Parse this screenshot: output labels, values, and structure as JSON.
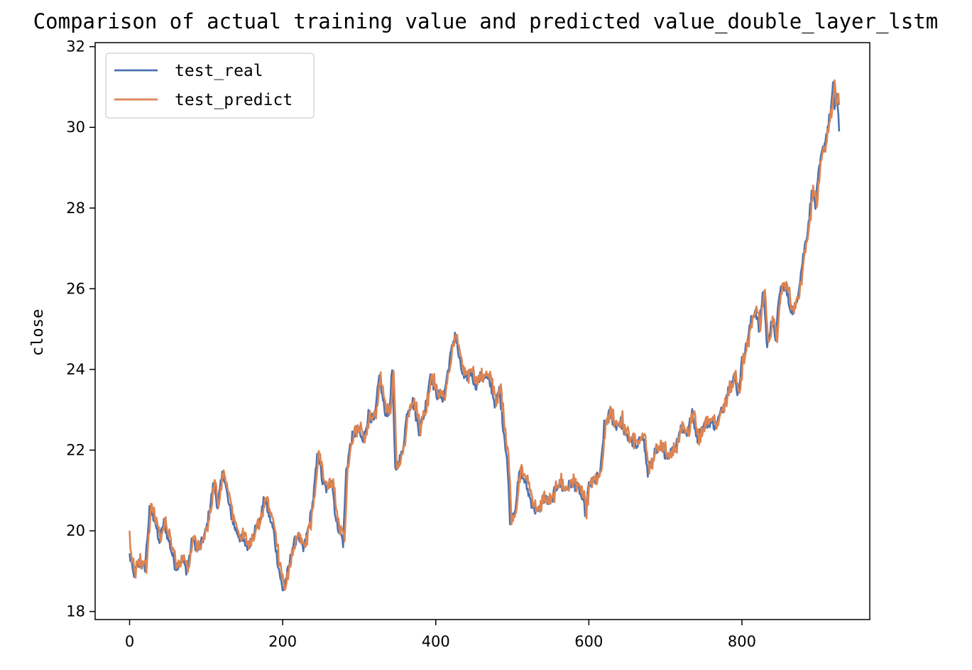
{
  "chart_data": {
    "type": "line",
    "title": "Comparison of actual training value and predicted value_double_layer_lstm",
    "xlabel": "",
    "ylabel": "close",
    "xlim": [
      -45,
      967
    ],
    "ylim": [
      17.8,
      32.1
    ],
    "xticks": [
      0,
      200,
      400,
      600,
      800
    ],
    "yticks": [
      18,
      20,
      22,
      24,
      26,
      28,
      30,
      32
    ],
    "grid": false,
    "legend_position": "top-left",
    "colors": {
      "test_real": "#4c72b0",
      "test_predict": "#dd8452"
    },
    "anchors": [
      [
        0,
        19.4
      ],
      [
        5,
        18.9
      ],
      [
        12,
        19.2
      ],
      [
        20,
        19.1
      ],
      [
        26,
        20.5
      ],
      [
        33,
        20.3
      ],
      [
        38,
        19.7
      ],
      [
        45,
        20.2
      ],
      [
        52,
        19.7
      ],
      [
        60,
        19.1
      ],
      [
        68,
        19.3
      ],
      [
        75,
        19.0
      ],
      [
        82,
        19.8
      ],
      [
        90,
        19.5
      ],
      [
        100,
        20.0
      ],
      [
        110,
        21.2
      ],
      [
        115,
        20.6
      ],
      [
        122,
        21.5
      ],
      [
        130,
        20.6
      ],
      [
        137,
        20.1
      ],
      [
        145,
        19.8
      ],
      [
        155,
        19.6
      ],
      [
        162,
        20.0
      ],
      [
        170,
        20.2
      ],
      [
        176,
        20.8
      ],
      [
        182,
        20.4
      ],
      [
        188,
        20.0
      ],
      [
        193,
        19.3
      ],
      [
        200,
        18.5
      ],
      [
        207,
        19.0
      ],
      [
        213,
        19.6
      ],
      [
        220,
        19.9
      ],
      [
        227,
        19.5
      ],
      [
        235,
        20.2
      ],
      [
        240,
        20.8
      ],
      [
        246,
        22.0
      ],
      [
        252,
        21.2
      ],
      [
        258,
        21.0
      ],
      [
        264,
        21.3
      ],
      [
        270,
        20.2
      ],
      [
        275,
        20.0
      ],
      [
        279,
        19.7
      ],
      [
        283,
        21.5
      ],
      [
        290,
        22.3
      ],
      [
        298,
        22.5
      ],
      [
        305,
        22.2
      ],
      [
        312,
        22.9
      ],
      [
        320,
        22.7
      ],
      [
        326,
        23.8
      ],
      [
        333,
        23.0
      ],
      [
        339,
        22.9
      ],
      [
        343,
        24.0
      ],
      [
        347,
        21.5
      ],
      [
        351,
        21.7
      ],
      [
        356,
        21.9
      ],
      [
        363,
        23.0
      ],
      [
        370,
        23.2
      ],
      [
        378,
        22.5
      ],
      [
        385,
        22.9
      ],
      [
        393,
        23.9
      ],
      [
        400,
        23.4
      ],
      [
        410,
        23.3
      ],
      [
        418,
        24.2
      ],
      [
        425,
        24.9
      ],
      [
        432,
        24.1
      ],
      [
        438,
        23.7
      ],
      [
        445,
        24.0
      ],
      [
        452,
        23.6
      ],
      [
        458,
        23.8
      ],
      [
        465,
        23.8
      ],
      [
        472,
        23.6
      ],
      [
        478,
        23.1
      ],
      [
        483,
        23.5
      ],
      [
        488,
        22.6
      ],
      [
        493,
        21.8
      ],
      [
        497,
        20.3
      ],
      [
        503,
        20.5
      ],
      [
        510,
        21.5
      ],
      [
        517,
        21.2
      ],
      [
        525,
        20.7
      ],
      [
        533,
        20.4
      ],
      [
        540,
        20.8
      ],
      [
        550,
        20.7
      ],
      [
        560,
        21.2
      ],
      [
        568,
        21.0
      ],
      [
        578,
        21.2
      ],
      [
        588,
        21.0
      ],
      [
        595,
        20.5
      ],
      [
        600,
        21.1
      ],
      [
        610,
        21.3
      ],
      [
        615,
        21.4
      ],
      [
        620,
        22.6
      ],
      [
        627,
        22.9
      ],
      [
        635,
        22.6
      ],
      [
        642,
        22.7
      ],
      [
        650,
        22.3
      ],
      [
        657,
        22.2
      ],
      [
        663,
        22.0
      ],
      [
        670,
        22.5
      ],
      [
        677,
        21.4
      ],
      [
        685,
        21.9
      ],
      [
        693,
        22.0
      ],
      [
        702,
        21.9
      ],
      [
        712,
        22.0
      ],
      [
        720,
        22.6
      ],
      [
        728,
        22.4
      ],
      [
        735,
        22.9
      ],
      [
        742,
        22.3
      ],
      [
        750,
        22.6
      ],
      [
        758,
        22.7
      ],
      [
        766,
        22.6
      ],
      [
        774,
        23.0
      ],
      [
        782,
        23.5
      ],
      [
        790,
        23.8
      ],
      [
        795,
        23.4
      ],
      [
        800,
        24.2
      ],
      [
        806,
        24.6
      ],
      [
        812,
        25.2
      ],
      [
        818,
        25.5
      ],
      [
        822,
        25.0
      ],
      [
        828,
        26.0
      ],
      [
        833,
        24.5
      ],
      [
        838,
        25.2
      ],
      [
        844,
        24.8
      ],
      [
        850,
        26.0
      ],
      [
        856,
        26.1
      ],
      [
        862,
        25.6
      ],
      [
        868,
        25.4
      ],
      [
        874,
        26.0
      ],
      [
        880,
        26.8
      ],
      [
        886,
        27.5
      ],
      [
        892,
        28.5
      ],
      [
        896,
        28.0
      ],
      [
        900,
        28.8
      ],
      [
        904,
        29.3
      ],
      [
        908,
        29.6
      ],
      [
        912,
        30.0
      ],
      [
        916,
        30.4
      ],
      [
        919,
        31.0
      ],
      [
        921,
        30.5
      ],
      [
        924,
        30.8
      ],
      [
        927,
        29.9
      ]
    ],
    "series": [
      {
        "name": "test_real"
      },
      {
        "name": "test_predict"
      }
    ]
  }
}
